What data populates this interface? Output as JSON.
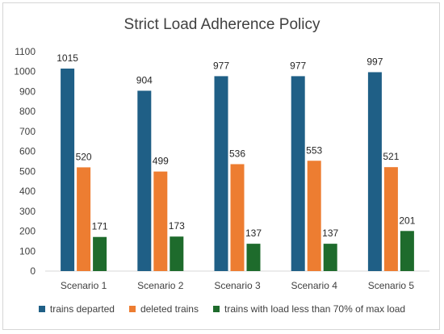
{
  "chart_data": {
    "type": "bar",
    "title": "Strict Load Adherence Policy",
    "categories": [
      "Scenario 1",
      "Scenario 2",
      "Scenario 3",
      "Scenario 4",
      "Scenario 5"
    ],
    "series": [
      {
        "name": "trains departed",
        "color": "#1f5f86",
        "values": [
          1015,
          904,
          977,
          977,
          997
        ]
      },
      {
        "name": "deleted trains",
        "color": "#ed7d31",
        "values": [
          520,
          499,
          536,
          553,
          521
        ]
      },
      {
        "name": "trains with load less than 70% of max load",
        "color": "#1e6b2c",
        "values": [
          171,
          173,
          137,
          137,
          201
        ]
      }
    ],
    "ylim": [
      0,
      1100
    ],
    "yticks": [
      0,
      100,
      200,
      300,
      400,
      500,
      600,
      700,
      800,
      900,
      1000,
      1100
    ],
    "data_labels": true,
    "grid": false,
    "legend_position": "bottom"
  }
}
